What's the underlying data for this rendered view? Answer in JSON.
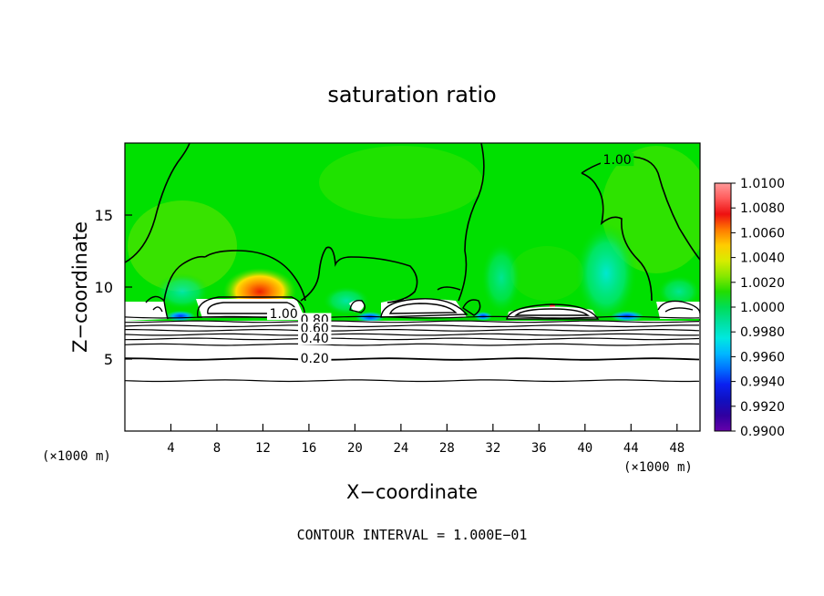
{
  "chart_data": {
    "type": "heatmap",
    "title": "saturation ratio",
    "xlabel": "X−coordinate",
    "ylabel": "Z−coordinate",
    "x_unit_left": "(×1000 m)",
    "x_unit_right": "(×1000 m)",
    "xlim": [
      0,
      50
    ],
    "ylim": [
      0,
      20
    ],
    "xticks": [
      4,
      8,
      12,
      16,
      20,
      24,
      28,
      32,
      36,
      40,
      44,
      48
    ],
    "yticks": [
      5,
      10,
      15
    ],
    "footer": "CONTOUR INTERVAL = 1.000E−01",
    "colorbar": {
      "ticks": [
        "1.0100",
        "1.0080",
        "1.0060",
        "1.0040",
        "1.0020",
        "1.0000",
        "0.9980",
        "0.9960",
        "0.9940",
        "0.9920",
        "0.9900"
      ],
      "colors": [
        "#ff9a9a",
        "#ff5a5a",
        "#ee1010",
        "#ff7a00",
        "#ffcc00",
        "#d8ec00",
        "#88e800",
        "#22dd00",
        "#00dd55",
        "#00e0a0",
        "#00e8e0",
        "#00b8ff",
        "#0070ff",
        "#0a20f0",
        "#1010c0",
        "#3000a0",
        "#6600aa"
      ]
    },
    "contour_labels": [
      {
        "text": "1.00",
        "x": 42.8,
        "z": 18.6
      },
      {
        "text": "1.00",
        "x": 13.8,
        "z": 7.9
      },
      {
        "text": "0.80",
        "x": 16.5,
        "z": 7.5
      },
      {
        "text": "0.60",
        "x": 16.5,
        "z": 6.9
      },
      {
        "text": "0.40",
        "x": 16.5,
        "z": 6.2
      },
      {
        "text": "0.20",
        "x": 16.5,
        "z": 4.8
      }
    ],
    "layered_levels_z": [
      7.9,
      7.6,
      7.3,
      7.0,
      6.7,
      6.4,
      6.0,
      5.0,
      3.5
    ]
  }
}
